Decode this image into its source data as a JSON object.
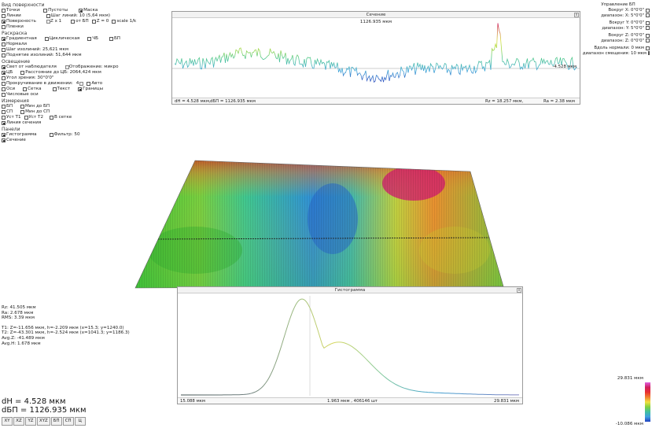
{
  "left_panel": {
    "surface_group": "Вид поверхности",
    "points": "Точки",
    "voids": "Пустоты",
    "mask": "Маска",
    "lines": "Линии",
    "line_step": "Шаг линий: 10 (5,64 мкм)",
    "surface": "Поверхность",
    "zx1": "Z x 1",
    "from_bp": "от БП",
    "z0": "Z = 0",
    "scale": "scale 1/k",
    "gaps": "Пленки",
    "color_group": "Раскраска",
    "gradient": "Градиентная",
    "cyclic": "Циклическая",
    "bw": "ЧБ",
    "bp": "БП",
    "normals": "Нормали",
    "iso_step": "Шаг изолиний: 25,621 мкм",
    "iso_bottom": "Поднятие изолиний: 51,644 мкм",
    "lighting_group": "Освещение",
    "light_from_observer": "Свет от наблюдателя",
    "reflection": "Отображение: микро",
    "cs": "ЦБ",
    "distance": "Расстояние до ЦБ: 2064,424 мкм",
    "view_angle": "Угол зрения: 30°0'0\"",
    "rotation": "Прокручивание в движении:",
    "rotation_val": "4",
    "auto": "Авто",
    "axes": "Оси",
    "grid": "Сетка",
    "text": "Текст",
    "borders": "Границы",
    "numbered_axes": "Числовые оси",
    "measure_group": "Измерения",
    "m_bp": "БП",
    "m_min_bp": "Мин до БП",
    "m_sp": "СП",
    "m_min_sp": "Мин до СП",
    "m_t1": "Уст Т1",
    "m_t2": "Уст Т2",
    "m_in_grid": "В сетке",
    "m_section_line": "Линия сечения",
    "windows_group": "Панели",
    "histogram": "Гистограмма",
    "filter": "Фильтр: 50",
    "section": "Сечение"
  },
  "section_window": {
    "title": "Сечение",
    "top_value": "1126.935 мкм",
    "right_value": "-4.528 мкм",
    "close": "x",
    "status_dh": "dH = 4.528 мкм,",
    "status_dbp": "dБП = 1126.935 мкм",
    "status_rz": "Rz = 18.257 мкм,",
    "status_ra": "Ra = 2.38 мкм"
  },
  "right_panel": {
    "title": "Управление БП",
    "bp_x": "Вокруг X: 0°0'0\"",
    "range_x": "диапазон: X: 5°0'0\"",
    "bp_y": "Вокруг Y: 0°0'0\"",
    "range_y": "диапазон: Y: 5°0'0\"",
    "bp_z": "Вокруг Z: 0°0'0\"",
    "range_z": "диапазон: Z: 0°0'0\"",
    "along_normal": "Вдоль нормали: 0 мкм",
    "shift_range": "диапазон смещения: 10 мкм"
  },
  "histogram_window": {
    "title": "Гистограмма",
    "close": "x",
    "status_left": "15.088 мкм",
    "status_mid": "1.963 мкм , 406146 шт",
    "status_right": "29.831 мкм"
  },
  "stats": {
    "rz": "Rz: 41.505 мкм",
    "ra": "Ra: 2.678 мкм",
    "rms": "RMS: 3.39 мкм",
    "t1": "T1: Z=-11.656 мкм, h=-2.209 мкм (x=15.3; y=1240.0)",
    "t2": "T2: Z=-43.301 мкм, h=-2.524 мкм (x=1041.3; y=1186.3)",
    "avg_z": "Avg.Z: -41.489 мкм",
    "avg_h": "Avg.H: 1.678 мкм"
  },
  "big": {
    "dh": "dH = 4.528 мкм",
    "dbp": "dБП = 1126.935 мкм"
  },
  "view_buttons": [
    "XY",
    "XZ",
    "YZ",
    "XYZ",
    "БП",
    "СП",
    "Ц"
  ],
  "color_scale": {
    "max": "29.831 мкм",
    "min": "-10.086 мкм"
  }
}
